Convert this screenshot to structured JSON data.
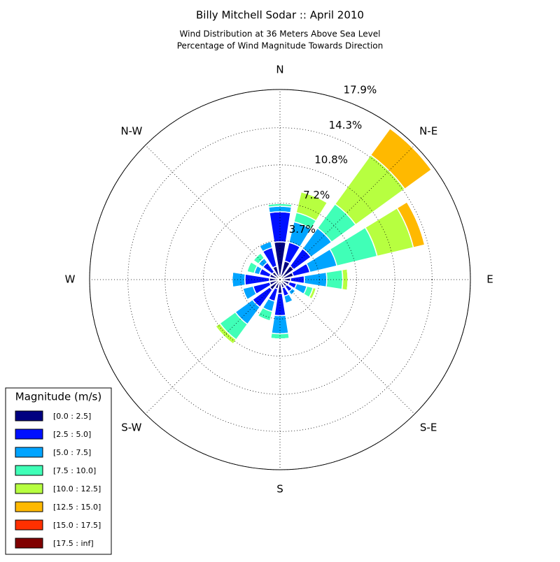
{
  "chart_data": {
    "type": "windrose",
    "title": "Billy Mitchell Sodar :: April 2010",
    "subtitle": [
      "Wind Distribution at 36 Meters Above Sea Level",
      "Percentage of Wind Magnitude Towards Direction"
    ],
    "categories": [
      "N",
      null,
      "N-E",
      null,
      "E",
      null,
      "S-E",
      null,
      "S",
      null,
      "S-W",
      null,
      "W",
      null,
      "N-W",
      null
    ],
    "rlim": [
      0,
      17.9
    ],
    "rticks": [
      {
        "value": 3.7,
        "label": "3.7%"
      },
      {
        "value": 7.2,
        "label": "7.2%"
      },
      {
        "value": 10.8,
        "label": "10.8%"
      },
      {
        "value": 14.3,
        "label": "14.3%"
      },
      {
        "value": 17.9,
        "label": "17.9%"
      }
    ],
    "grid": true,
    "legend_title": "Magnitude (m/s)",
    "legend_position": "lower left",
    "series": [
      {
        "name": "[0.0 : 2.5]",
        "color": "#000080",
        "values": [
          3.55,
          1.8,
          1.6,
          1.3,
          1.0,
          0.9,
          0.8,
          0.8,
          1.3,
          0.9,
          1.2,
          1.0,
          1.0,
          1.0,
          0.9,
          1.3
        ]
      },
      {
        "name": "[2.5 : 5.0]",
        "color": "#0010ff",
        "values": [
          2.83,
          1.8,
          2.0,
          1.6,
          1.3,
          0.7,
          0.6,
          0.8,
          2.1,
          1.2,
          2.0,
          1.6,
          2.3,
          1.0,
          1.1,
          1.8
        ]
      },
      {
        "name": "[5.0 : 7.5]",
        "color": "#00a4ff",
        "values": [
          0.53,
          2.0,
          2.4,
          2.6,
          2.1,
          1.0,
          0.4,
          0.7,
          1.7,
          1.0,
          2.0,
          1.0,
          1.2,
          0.5,
          0.5,
          0.6
        ]
      },
      {
        "name": "[7.5 : 10.0]",
        "color": "#40ffb7",
        "values": [
          0.26,
          0.9,
          2.8,
          3.9,
          1.5,
          0.6,
          0,
          0,
          0.5,
          0.9,
          1.8,
          0,
          0,
          0.7,
          0.6,
          0
        ]
      },
      {
        "name": "[10.0 : 12.5]",
        "color": "#b7ff40",
        "values": [
          0,
          2.0,
          5.7,
          3.5,
          0.5,
          0.3,
          0,
          0,
          0,
          0,
          0.5,
          0,
          0,
          0,
          0,
          0
        ]
      },
      {
        "name": "[12.5 : 15.0]",
        "color": "#ffb900",
        "values": [
          0,
          0,
          3.1,
          1.1,
          0,
          0,
          0,
          0,
          0,
          0,
          0,
          0,
          0,
          0,
          0,
          0
        ]
      },
      {
        "name": "[15.0 : 17.5]",
        "color": "#ff3000",
        "values": [
          0,
          0,
          0,
          0,
          0,
          0,
          0,
          0,
          0,
          0,
          0,
          0,
          0,
          0,
          0,
          0
        ]
      },
      {
        "name": "[17.5 : inf]",
        "color": "#800000",
        "values": [
          0,
          0,
          0,
          0,
          0,
          0,
          0,
          0,
          0,
          0,
          0,
          0,
          0,
          0,
          0,
          0
        ]
      }
    ]
  }
}
